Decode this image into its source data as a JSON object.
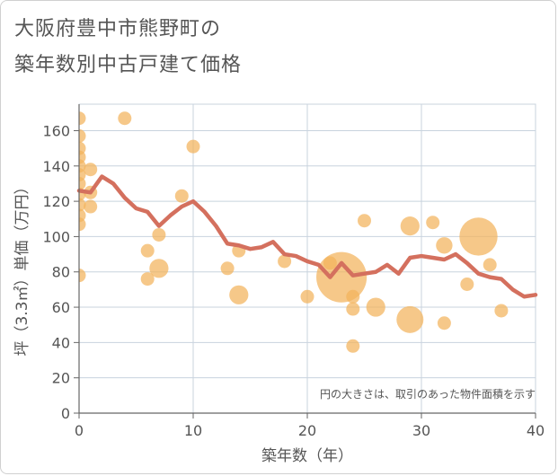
{
  "header": {
    "title_line1": "大阪府豊中市熊野町の",
    "title_line2": "築年数別中古戸建て価格"
  },
  "chart_data": {
    "type": "scatter",
    "xlabel": "築年数（年）",
    "ylabel": "坪（3.3㎡）単価（万円）",
    "xlim": [
      0,
      40
    ],
    "ylim": [
      0,
      175
    ],
    "x_ticks": [
      0,
      10,
      20,
      30,
      40
    ],
    "y_ticks": [
      0,
      20,
      40,
      60,
      80,
      100,
      120,
      140,
      160
    ],
    "grid": true,
    "note": "円の大きさは、取引のあった物件面積を示す",
    "colors": {
      "bubble": "#f2b35c",
      "line": "#d4705e",
      "grid": "#c8d3de",
      "axis": "#666666"
    },
    "bubbles": [
      {
        "x": 0,
        "y": 167,
        "size": 1
      },
      {
        "x": 0,
        "y": 157,
        "size": 1
      },
      {
        "x": 0,
        "y": 150,
        "size": 1
      },
      {
        "x": 0,
        "y": 145,
        "size": 1
      },
      {
        "x": 0,
        "y": 140,
        "size": 1
      },
      {
        "x": 0,
        "y": 135,
        "size": 1
      },
      {
        "x": 0,
        "y": 130,
        "size": 1
      },
      {
        "x": 0,
        "y": 124,
        "size": 1
      },
      {
        "x": 0,
        "y": 118,
        "size": 1
      },
      {
        "x": 0,
        "y": 112,
        "size": 1
      },
      {
        "x": 0,
        "y": 107,
        "size": 1
      },
      {
        "x": 0,
        "y": 78,
        "size": 1
      },
      {
        "x": 1,
        "y": 138,
        "size": 1
      },
      {
        "x": 1,
        "y": 125,
        "size": 1
      },
      {
        "x": 1,
        "y": 117,
        "size": 1
      },
      {
        "x": 4,
        "y": 167,
        "size": 1
      },
      {
        "x": 6,
        "y": 92,
        "size": 1
      },
      {
        "x": 6,
        "y": 76,
        "size": 1
      },
      {
        "x": 7,
        "y": 101,
        "size": 1
      },
      {
        "x": 7,
        "y": 82,
        "size": 2
      },
      {
        "x": 9,
        "y": 123,
        "size": 1
      },
      {
        "x": 10,
        "y": 151,
        "size": 1
      },
      {
        "x": 13,
        "y": 82,
        "size": 1
      },
      {
        "x": 14,
        "y": 92,
        "size": 1
      },
      {
        "x": 14,
        "y": 67,
        "size": 2
      },
      {
        "x": 18,
        "y": 86,
        "size": 1
      },
      {
        "x": 20,
        "y": 66,
        "size": 1
      },
      {
        "x": 22,
        "y": 85,
        "size": 1
      },
      {
        "x": 23,
        "y": 77,
        "size": 14
      },
      {
        "x": 24,
        "y": 66,
        "size": 1
      },
      {
        "x": 24,
        "y": 59,
        "size": 1
      },
      {
        "x": 24,
        "y": 38,
        "size": 1
      },
      {
        "x": 25,
        "y": 109,
        "size": 1
      },
      {
        "x": 26,
        "y": 60,
        "size": 2
      },
      {
        "x": 29,
        "y": 106,
        "size": 2
      },
      {
        "x": 29,
        "y": 53,
        "size": 4
      },
      {
        "x": 31,
        "y": 108,
        "size": 1
      },
      {
        "x": 32,
        "y": 95,
        "size": 1.5
      },
      {
        "x": 32,
        "y": 51,
        "size": 1
      },
      {
        "x": 34,
        "y": 73,
        "size": 1
      },
      {
        "x": 35,
        "y": 100,
        "size": 8
      },
      {
        "x": 36,
        "y": 84,
        "size": 1
      },
      {
        "x": 37,
        "y": 58,
        "size": 1
      }
    ],
    "series": [
      {
        "x": [
          0,
          1,
          2,
          3,
          4,
          5,
          6,
          7,
          8,
          9,
          10,
          11,
          12,
          13,
          14,
          15,
          16,
          17,
          18,
          19,
          20,
          21,
          22,
          23,
          24,
          25,
          26,
          27,
          28,
          29,
          30,
          31,
          32,
          33,
          34,
          35,
          36,
          37,
          38,
          39,
          40
        ],
        "values": [
          126,
          125,
          134,
          130,
          122,
          116,
          114,
          106,
          112,
          117,
          120,
          114,
          106,
          96,
          95,
          93,
          94,
          97,
          90,
          89,
          86,
          84,
          77,
          85,
          78,
          79,
          80,
          84,
          79,
          88,
          89,
          88,
          87,
          90,
          85,
          79,
          77,
          76,
          70,
          66,
          67
        ]
      }
    ]
  }
}
